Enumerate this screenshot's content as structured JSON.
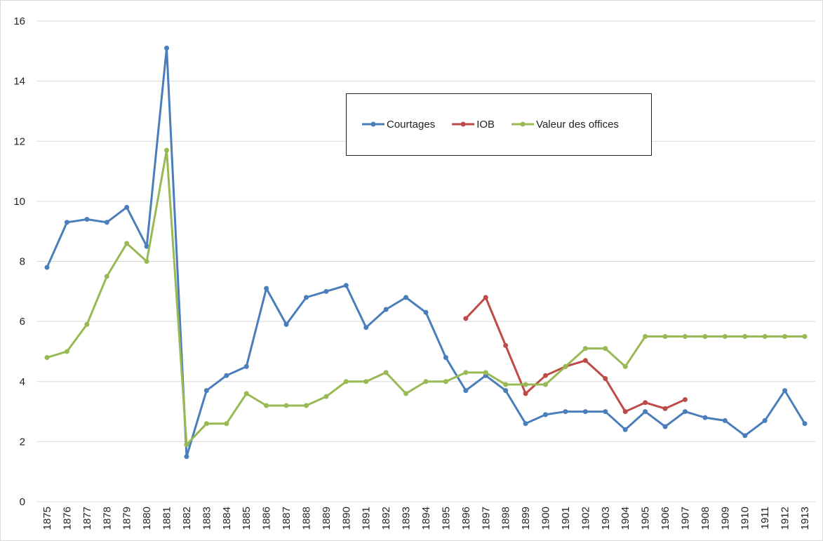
{
  "chart_data": {
    "type": "line",
    "categories": [
      "1875",
      "1876",
      "1877",
      "1878",
      "1879",
      "1880",
      "1881",
      "1882",
      "1883",
      "1884",
      "1885",
      "1886",
      "1887",
      "1888",
      "1889",
      "1890",
      "1891",
      "1892",
      "1893",
      "1894",
      "1895",
      "1896",
      "1897",
      "1898",
      "1899",
      "1900",
      "1901",
      "1902",
      "1903",
      "1904",
      "1905",
      "1906",
      "1907",
      "1908",
      "1909",
      "1910",
      "1911",
      "1912",
      "1913"
    ],
    "series": [
      {
        "name": "Courtages",
        "color": "#4a7ebb",
        "values": [
          7.8,
          9.3,
          9.4,
          9.3,
          9.8,
          8.5,
          15.1,
          1.5,
          3.7,
          4.2,
          4.5,
          7.1,
          5.9,
          6.8,
          7.0,
          7.2,
          5.8,
          6.4,
          6.8,
          6.3,
          4.8,
          3.7,
          4.2,
          3.7,
          2.6,
          2.9,
          3.0,
          3.0,
          3.0,
          2.4,
          3.0,
          2.5,
          3.0,
          2.8,
          2.7,
          2.2,
          2.7,
          3.7,
          2.6
        ]
      },
      {
        "name": "IOB",
        "color": "#be4b48",
        "values": [
          null,
          null,
          null,
          null,
          null,
          null,
          null,
          null,
          null,
          null,
          null,
          null,
          null,
          null,
          null,
          null,
          null,
          null,
          null,
          null,
          null,
          6.1,
          6.8,
          5.2,
          3.6,
          4.2,
          4.5,
          4.7,
          4.1,
          3.0,
          3.3,
          3.1,
          3.4,
          null,
          null,
          null,
          null,
          null,
          null
        ]
      },
      {
        "name": "Valeur des offices",
        "color": "#98b954",
        "values": [
          4.8,
          5.0,
          5.9,
          7.5,
          8.6,
          8.0,
          11.7,
          1.9,
          2.6,
          2.6,
          3.6,
          3.2,
          3.2,
          3.2,
          3.5,
          4.0,
          4.0,
          4.3,
          3.6,
          4.0,
          4.0,
          4.3,
          4.3,
          3.9,
          3.9,
          3.9,
          4.5,
          5.1,
          5.1,
          4.5,
          5.5,
          5.5,
          5.5,
          5.5,
          5.5,
          5.5,
          5.5,
          5.5,
          5.5
        ]
      }
    ],
    "ylim": [
      0,
      16
    ],
    "yticks": [
      0,
      2,
      4,
      6,
      8,
      10,
      12,
      14,
      16
    ],
    "grid": true
  }
}
